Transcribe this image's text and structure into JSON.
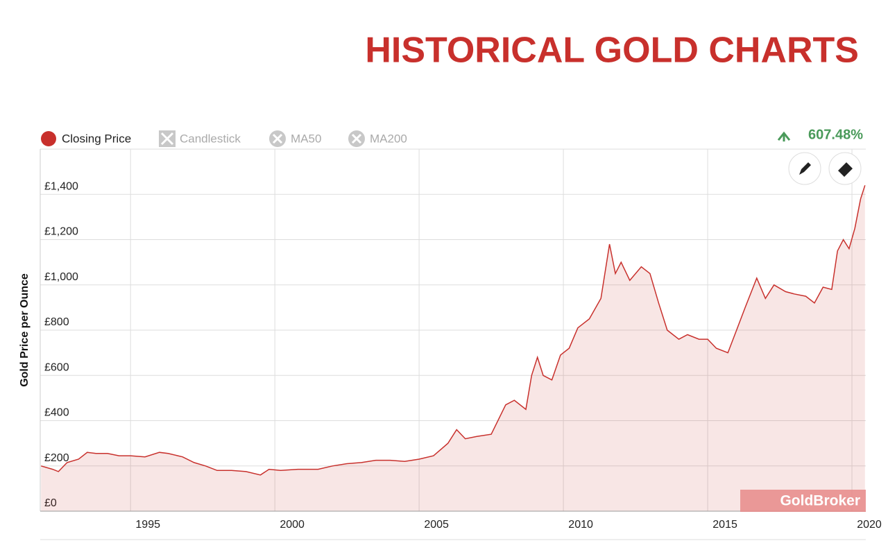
{
  "chart_data": {
    "type": "line",
    "title": "HISTORICAL GOLD CHARTS",
    "change": "607.48%",
    "toggles": [
      "Candlestick",
      "MA50",
      "MA200"
    ],
    "y_label": "Gold Price per Ounce",
    "watermark": "GoldBroker",
    "x": [
      1991.9,
      1992.3,
      1992.5,
      1992.8,
      1993.2,
      1993.5,
      1993.8,
      1994.2,
      1994.6,
      1995.0,
      1995.5,
      1996.0,
      1996.3,
      1996.8,
      1997.2,
      1997.6,
      1998.0,
      1998.5,
      1999.0,
      1999.5,
      1999.8,
      2000.2,
      2000.8,
      2001.5,
      2002.0,
      2002.5,
      2003.0,
      2003.5,
      2004.0,
      2004.5,
      2005.0,
      2005.5,
      2006.0,
      2006.3,
      2006.6,
      2007.0,
      2007.5,
      2008.0,
      2008.3,
      2008.7,
      2008.9,
      2009.1,
      2009.3,
      2009.6,
      2009.9,
      2010.2,
      2010.5,
      2010.9,
      2011.3,
      2011.6,
      2011.8,
      2012.0,
      2012.3,
      2012.7,
      2013.0,
      2013.3,
      2013.6,
      2014.0,
      2014.3,
      2014.7,
      2015.0,
      2015.3,
      2015.7,
      2016.0,
      2016.3,
      2016.7,
      2017.0,
      2017.3,
      2017.7,
      2018.0,
      2018.4,
      2018.7,
      2019.0,
      2019.3,
      2019.5,
      2019.7,
      2019.9,
      2020.1,
      2020.3,
      2020.45
    ],
    "series": [
      {
        "name": "Closing Price",
        "color": "#c8302c",
        "values": [
          200,
          185,
          175,
          215,
          230,
          260,
          255,
          255,
          245,
          245,
          240,
          260,
          255,
          240,
          215,
          200,
          180,
          180,
          175,
          160,
          185,
          180,
          185,
          185,
          200,
          210,
          215,
          225,
          225,
          220,
          230,
          245,
          300,
          360,
          320,
          330,
          340,
          470,
          490,
          450,
          600,
          680,
          600,
          580,
          690,
          720,
          810,
          850,
          940,
          1180,
          1050,
          1100,
          1020,
          1080,
          1050,
          920,
          800,
          760,
          780,
          760,
          760,
          720,
          700,
          800,
          900,
          1030,
          940,
          1000,
          970,
          960,
          950,
          920,
          990,
          980,
          1150,
          1200,
          1160,
          1250,
          1380,
          1440
        ]
      }
    ],
    "xlim": [
      1991.87,
      2020.48
    ],
    "xticks": [
      1995,
      2000,
      2005,
      2010,
      2015,
      2020
    ],
    "ylim": [
      0,
      1600
    ],
    "yticks": [
      {
        "value": 0,
        "label": "£0"
      },
      {
        "value": 200,
        "label": "£200"
      },
      {
        "value": 400,
        "label": "£400"
      },
      {
        "value": 600,
        "label": "£600"
      },
      {
        "value": 800,
        "label": "£800"
      },
      {
        "value": 1000,
        "label": "£1,000"
      },
      {
        "value": 1200,
        "label": "£1,200"
      },
      {
        "value": 1400,
        "label": "£1,400"
      }
    ],
    "grid": true
  }
}
